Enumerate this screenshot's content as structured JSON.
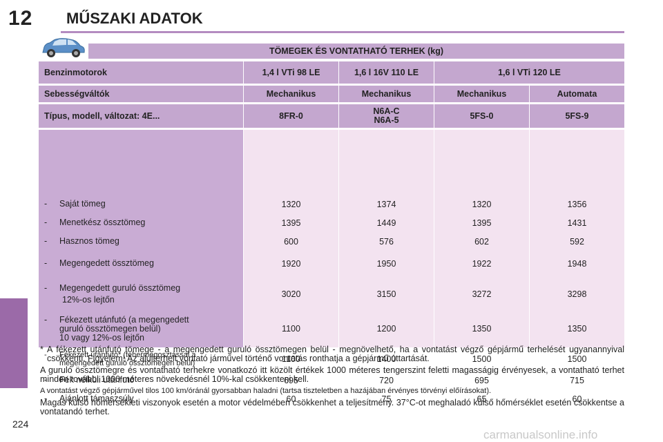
{
  "page": {
    "chapter_number": "12",
    "chapter_title": "MŰSZAKI ADATOK",
    "page_number": "224",
    "accent_color": "#9b6aa8",
    "watermark": "carmanualsonline.info"
  },
  "section": {
    "icon": "car-icon",
    "title": "TÖMEGEK ÉS VONTATHATÓ TERHEK (kg)"
  },
  "table": {
    "engine_label": "Benzinmotorok",
    "engines": [
      "1,4 l VTi 98 LE",
      "1,6 l 16V 110 LE",
      "1,6 l VTi 120 LE"
    ],
    "gearbox_label": "Sebességváltók",
    "gearboxes": [
      "Mechanikus",
      "Mechanikus",
      "Mechanikus",
      "Automata"
    ],
    "type_label": "Típus, modell, változat: 4E...",
    "types": [
      [
        "8FR-0"
      ],
      [
        "N6A-C",
        "N6A-5"
      ],
      [
        "5FS-0"
      ],
      [
        "5FS-9"
      ]
    ],
    "rows": [
      {
        "dash": "-",
        "label_lines": [
          "Saját tömeg"
        ],
        "values": [
          "1320",
          "1374",
          "1320",
          "1356"
        ]
      },
      {
        "dash": "-",
        "label_lines": [
          "Menetkész össztömeg"
        ],
        "values": [
          "1395",
          "1449",
          "1395",
          "1431"
        ]
      },
      {
        "dash": "-",
        "label_lines": [
          "Hasznos tömeg"
        ],
        "values": [
          "600",
          "576",
          "602",
          "592"
        ]
      },
      {
        "dash": "-",
        "label_lines": [
          "Megengedett össztömeg"
        ],
        "values": [
          "1920",
          "1950",
          "1922",
          "1948"
        ]
      },
      {
        "dash": "-",
        "label_lines": [
          "Megengedett guruló össztömeg",
          "12%-os lejtőn"
        ],
        "values": [
          "3020",
          "3150",
          "3272",
          "3298"
        ]
      },
      {
        "dash": "-",
        "label_lines": [
          "Fékezett utánfutó (a megengedett",
          "guruló össztömegen belül)",
          "10 vagy 12%-os lejtőn"
        ],
        "values": [
          "1100",
          "1200",
          "1350",
          "1350"
        ]
      },
      {
        "dash": "-",
        "label_lines": [
          "Fékezett utánfutó* (tehermegosztással a",
          "megengedett guruló össztömegen belül)"
        ],
        "values": [
          "1100",
          "1400",
          "1500",
          "1500"
        ]
      },
      {
        "dash": "-",
        "label_lines": [
          "Fék nélküli utánfutó"
        ],
        "values": [
          "695",
          "720",
          "695",
          "715"
        ]
      },
      {
        "dash": "-",
        "label_lines": [
          "Ajánlott támaszsúly"
        ],
        "values": [
          "60",
          "75",
          "65",
          "60"
        ]
      }
    ]
  },
  "notes": {
    "footnote_mark": "*",
    "footnote": "A fékezett utánfutó tömege - a megengedett guruló össztömegen belül - megnövelhető, ha a vontatást végző gépjármű terhelését ugyanannyival csökkenti. Figyelem! Az alulterhelt vontató járművel történő vontatás ronthatja a gépjármű úttartását.",
    "para1": "A guruló össztömegre és vontatható terhekre vonatkozó itt közölt értékek 1000 méteres tengerszint feletti magasságig érvényesek, a vontatható terhet minden további 1000 méteres növekedésnél 10%-kal csökkenteni kell.",
    "para2": "A vontatást végző gépjárművel tilos 100 km/óránál gyorsabban haladni (tartsa tiszteletben a hazájában érvényes törvényi előírásokat).",
    "para3": "Magas külső hőmérsékleti viszonyok esetén a motor védelmében csökkenhet a teljesítmény. 37°C-ot meghaladó külső hőmérséklet esetén csökkentse a vontatandó terhet."
  }
}
